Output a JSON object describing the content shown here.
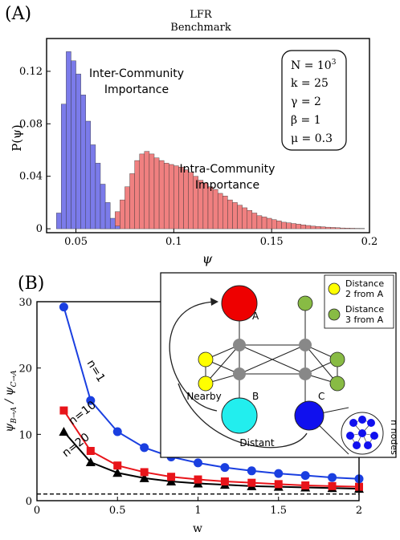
{
  "chart_data": [
    {
      "type": "bar",
      "panel_label": "(A)",
      "title": "LFR\nBenchmark",
      "xlabel": "ψ",
      "ylabel": "P(ψ)",
      "xlim": [
        0.035,
        0.2
      ],
      "ylim": [
        -0.003,
        0.145
      ],
      "x_ticks": [
        0.05,
        0.1,
        0.15,
        0.2
      ],
      "x_tick_labels": [
        "0.05",
        "0.1",
        "0.15",
        "0.2"
      ],
      "y_ticks": [
        0,
        0.04,
        0.08,
        0.12
      ],
      "y_tick_labels": [
        "0",
        "0.04",
        "0.08",
        "0.12"
      ],
      "bin_width": 0.0025,
      "series": [
        {
          "name": "Inter-Community Importance",
          "color": "#7b7bea",
          "bin_start": 0.04,
          "values": [
            0.012,
            0.095,
            0.135,
            0.128,
            0.118,
            0.102,
            0.082,
            0.064,
            0.05,
            0.034,
            0.02,
            0.008,
            0.002
          ]
        },
        {
          "name": "Intra-Community Importance",
          "color": "#f08080",
          "bin_start": 0.0625,
          "values": [
            0.001,
            0.003,
            0.007,
            0.013,
            0.022,
            0.032,
            0.042,
            0.052,
            0.057,
            0.059,
            0.057,
            0.054,
            0.052,
            0.05,
            0.049,
            0.048,
            0.047,
            0.045,
            0.043,
            0.04,
            0.037,
            0.035,
            0.032,
            0.03,
            0.027,
            0.025,
            0.022,
            0.02,
            0.018,
            0.016,
            0.014,
            0.012,
            0.01,
            0.009,
            0.008,
            0.007,
            0.006,
            0.005,
            0.0045,
            0.004,
            0.0035,
            0.003,
            0.0025,
            0.002,
            0.0018,
            0.0015,
            0.0012,
            0.001,
            0.0008,
            0.0006,
            0.0005,
            0.0004,
            0.0003,
            0.0002
          ]
        }
      ],
      "annotations": {
        "inter_line1": "Inter-Community",
        "inter_line2": "Importance",
        "intra_line1": "Intra-Community",
        "intra_line2": "Importance"
      },
      "params_box": {
        "N_label": "N = 10",
        "N_exp": "3",
        "k": "k = 25",
        "gamma": "γ = 2",
        "beta": "β = 1",
        "mu": "μ = 0.3"
      }
    },
    {
      "type": "line",
      "panel_label": "(B)",
      "xlabel": "w",
      "ylabel_main": "ψ",
      "ylabel_sub1": "B→A",
      "ylabel_mid": " / ψ",
      "ylabel_sub2": "C→A",
      "xlim": [
        0,
        2
      ],
      "ylim": [
        0,
        30
      ],
      "x_ticks": [
        0,
        0.5,
        1,
        1.5,
        2
      ],
      "x_tick_labels": [
        "0",
        "0.5",
        "1",
        "1.5",
        "2"
      ],
      "y_ticks": [
        0,
        10,
        20,
        30
      ],
      "y_tick_labels": [
        "0",
        "10",
        "20",
        "30"
      ],
      "x": [
        0.1667,
        0.3333,
        0.5,
        0.6667,
        0.8333,
        1.0,
        1.1667,
        1.3333,
        1.5,
        1.6667,
        1.8333,
        2.0
      ],
      "series": [
        {
          "name": "n=1",
          "color": "#1a3fe0",
          "marker": "circle",
          "values": [
            29.2,
            15.1,
            10.4,
            8.0,
            6.6,
            5.7,
            5.0,
            4.5,
            4.1,
            3.8,
            3.5,
            3.3
          ]
        },
        {
          "name": "n=10",
          "color": "#e8141a",
          "marker": "square",
          "values": [
            13.6,
            7.5,
            5.3,
            4.3,
            3.6,
            3.2,
            2.9,
            2.7,
            2.5,
            2.3,
            2.2,
            2.1
          ]
        },
        {
          "name": "n=20",
          "color": "#000000",
          "marker": "triangle",
          "values": [
            10.4,
            5.8,
            4.2,
            3.4,
            2.9,
            2.6,
            2.4,
            2.2,
            2.1,
            2.0,
            1.9,
            1.8
          ]
        }
      ],
      "reference_line": 1,
      "inset": {
        "legend_2": "Distance\n2 from A",
        "legend_3": "Distance\n3 from A",
        "color_yellow": "#ffff00",
        "color_green": "#88bb44",
        "color_red": "#ee0000",
        "color_cyan": "#22eeee",
        "color_blue": "#1010ee",
        "color_gray": "#888888",
        "label_A": "A",
        "label_B": "B",
        "label_C": "C",
        "label_nearby": "Nearby",
        "label_distant": "Distant",
        "label_nnodes": "n nodes"
      }
    }
  ]
}
